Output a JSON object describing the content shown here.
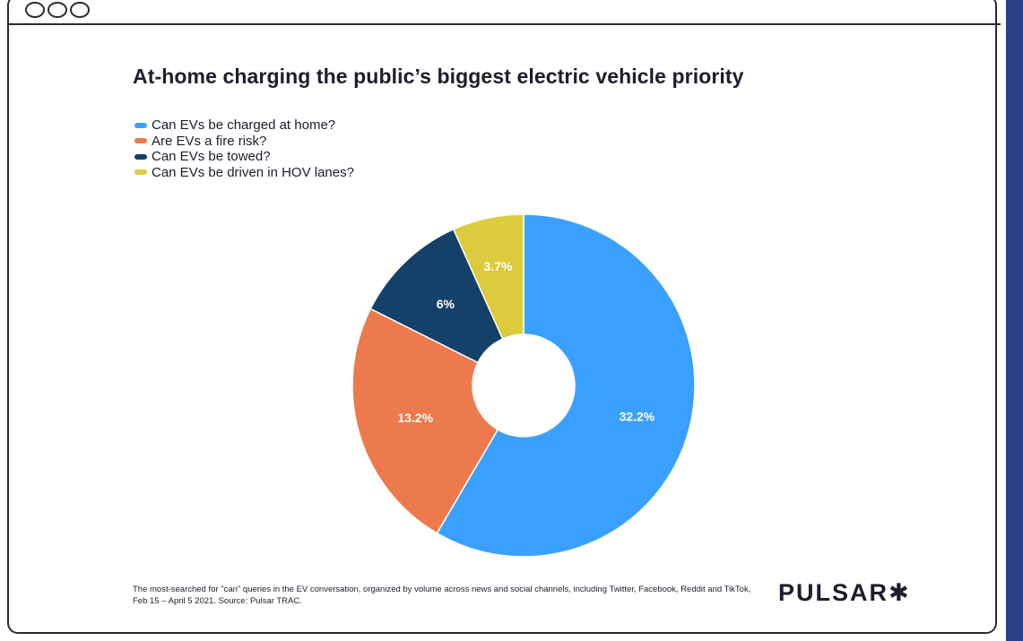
{
  "colors": {
    "frame": "#2b2b2b",
    "side_band": "#2c3f86",
    "text": "#1d1d2b"
  },
  "logo": "PULSAR✱",
  "footnote": "The most-searched for \"can\" queries in the EV conversation, organized by volume across news and social channels, including Twitter, Facebook, Reddit and TikTok, Feb 15 – April 5 2021. Source: Pulsar TRAC.",
  "chart_data": {
    "type": "pie",
    "donut": true,
    "title": "At-home charging the public’s biggest electric vehicle priority",
    "legend_position": "top-left",
    "slices": [
      {
        "label": "Can EVs be charged at home?",
        "value": 32.2,
        "display": "32.2%",
        "color": "#3aa0ff"
      },
      {
        "label": "Are EVs a fire risk?",
        "value": 13.2,
        "display": "13.2%",
        "color": "#ed7a4c"
      },
      {
        "label": "Can EVs be towed?",
        "value": 6,
        "display": "6%",
        "color": "#15406a"
      },
      {
        "label": "Can EVs be driven in HOV lanes?",
        "value": 3.7,
        "display": "3.7%",
        "color": "#dccb3c"
      }
    ]
  }
}
